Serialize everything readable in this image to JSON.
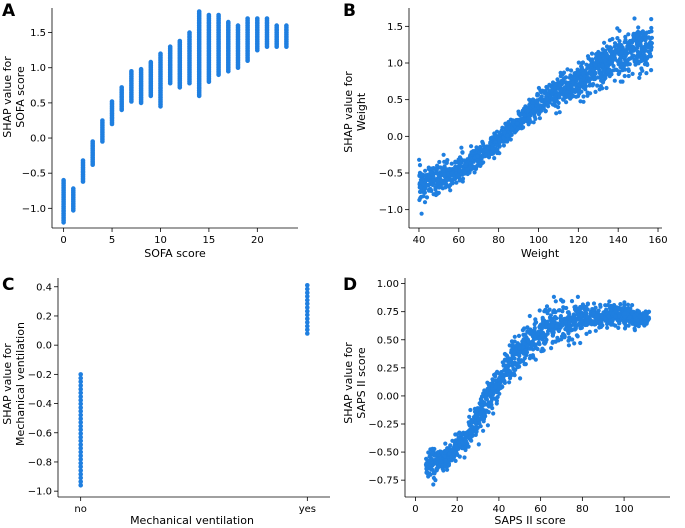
{
  "figure": {
    "point_color": "#1f7fe0"
  },
  "chart_data": [
    {
      "panel": "A",
      "type": "scatter",
      "xlabel": "SOFA score",
      "ylabel": [
        "SHAP value for",
        "SOFA score"
      ],
      "xlim": [
        -1.2,
        24.2
      ],
      "ylim": [
        -1.28,
        1.85
      ],
      "xticks": [
        0,
        5,
        10,
        15,
        20
      ],
      "xtick_labels": [
        "0",
        "5",
        "10",
        "15",
        "20"
      ],
      "yticks": [
        -1.0,
        -0.5,
        0.0,
        0.5,
        1.0,
        1.5
      ],
      "ytick_labels": [
        "−1.0",
        "−0.5",
        "0.0",
        "0.5",
        "1.0",
        "1.5"
      ],
      "discrete_bands": [
        {
          "x": 0,
          "ymin": -1.2,
          "ymax": -0.6
        },
        {
          "x": 1,
          "ymin": -1.03,
          "ymax": -0.72
        },
        {
          "x": 2,
          "ymin": -0.62,
          "ymax": -0.32
        },
        {
          "x": 3,
          "ymin": -0.38,
          "ymax": -0.05
        },
        {
          "x": 4,
          "ymin": -0.05,
          "ymax": 0.25
        },
        {
          "x": 5,
          "ymin": 0.2,
          "ymax": 0.52
        },
        {
          "x": 6,
          "ymin": 0.4,
          "ymax": 0.72
        },
        {
          "x": 7,
          "ymin": 0.52,
          "ymax": 0.95
        },
        {
          "x": 8,
          "ymin": 0.5,
          "ymax": 0.98
        },
        {
          "x": 9,
          "ymin": 0.6,
          "ymax": 1.08
        },
        {
          "x": 10,
          "ymin": 0.45,
          "ymax": 1.2
        },
        {
          "x": 11,
          "ymin": 0.78,
          "ymax": 1.3
        },
        {
          "x": 12,
          "ymin": 0.72,
          "ymax": 1.38
        },
        {
          "x": 13,
          "ymin": 0.78,
          "ymax": 1.5
        },
        {
          "x": 14,
          "ymin": 0.6,
          "ymax": 1.8
        },
        {
          "x": 15,
          "ymin": 0.8,
          "ymax": 1.75
        },
        {
          "x": 16,
          "ymin": 0.9,
          "ymax": 1.75
        },
        {
          "x": 17,
          "ymin": 0.95,
          "ymax": 1.65
        },
        {
          "x": 18,
          "ymin": 1.0,
          "ymax": 1.6
        },
        {
          "x": 19,
          "ymin": 1.1,
          "ymax": 1.7
        },
        {
          "x": 20,
          "ymin": 1.25,
          "ymax": 1.7
        },
        {
          "x": 21,
          "ymin": 1.3,
          "ymax": 1.7
        },
        {
          "x": 22,
          "ymin": 1.3,
          "ymax": 1.6
        },
        {
          "x": 23,
          "ymin": 1.3,
          "ymax": 1.6
        }
      ]
    },
    {
      "panel": "B",
      "type": "scatter",
      "xlabel": "Weight",
      "ylabel": [
        "SHAP value for",
        "Weight"
      ],
      "xlim": [
        35,
        162
      ],
      "ylim": [
        -1.25,
        1.75
      ],
      "xticks": [
        40,
        60,
        80,
        100,
        120,
        140,
        160
      ],
      "xtick_labels": [
        "40",
        "60",
        "80",
        "100",
        "120",
        "140",
        "160"
      ],
      "yticks": [
        -1.0,
        -0.5,
        0.0,
        0.5,
        1.0,
        1.5
      ],
      "ytick_labels": [
        "−1.0",
        "−0.5",
        "0.0",
        "0.5",
        "1.0",
        "1.5"
      ],
      "trend": [
        {
          "x": 40,
          "y": -0.65,
          "spread": 0.22
        },
        {
          "x": 55,
          "y": -0.55,
          "spread": 0.18
        },
        {
          "x": 70,
          "y": -0.3,
          "spread": 0.15
        },
        {
          "x": 85,
          "y": 0.05,
          "spread": 0.12
        },
        {
          "x": 100,
          "y": 0.45,
          "spread": 0.15
        },
        {
          "x": 120,
          "y": 0.75,
          "spread": 0.2
        },
        {
          "x": 140,
          "y": 1.1,
          "spread": 0.25
        },
        {
          "x": 157,
          "y": 1.25,
          "spread": 0.3
        }
      ]
    },
    {
      "panel": "C",
      "type": "scatter",
      "xlabel": "Mechanical ventilation",
      "ylabel": [
        "SHAP value for",
        "Mechanical ventilation"
      ],
      "xlim": [
        -0.1,
        1.1
      ],
      "ylim": [
        -1.04,
        0.46
      ],
      "xticks": [
        0,
        1
      ],
      "xtick_labels": [
        "no",
        "yes"
      ],
      "yticks": [
        -1.0,
        -0.8,
        -0.6,
        -0.4,
        -0.2,
        0.0,
        0.2,
        0.4
      ],
      "ytick_labels": [
        "−1.0",
        "−0.8",
        "−0.6",
        "−0.4",
        "−0.2",
        "0.0",
        "0.2",
        "0.4"
      ],
      "discrete_bands": [
        {
          "x": 0,
          "ymin": -0.96,
          "ymax": -0.2
        },
        {
          "x": 1,
          "ymin": 0.08,
          "ymax": 0.41
        }
      ]
    },
    {
      "panel": "D",
      "type": "scatter",
      "xlabel": "SAPS II score",
      "ylabel": [
        "SHAP value for",
        "SAPS II score"
      ],
      "xlim": [
        -5,
        122
      ],
      "ylim": [
        -0.9,
        1.05
      ],
      "xticks": [
        0,
        20,
        40,
        60,
        80,
        100
      ],
      "xtick_labels": [
        "0",
        "20",
        "40",
        "60",
        "80",
        "100"
      ],
      "yticks": [
        -0.75,
        -0.5,
        -0.25,
        0.0,
        0.25,
        0.5,
        0.75,
        1.0
      ],
      "ytick_labels": [
        "−0.75",
        "−0.50",
        "−0.25",
        "0.00",
        "0.25",
        "0.50",
        "0.75",
        "1.00"
      ],
      "trend": [
        {
          "x": 5,
          "y": -0.6,
          "spread": 0.12
        },
        {
          "x": 15,
          "y": -0.55,
          "spread": 0.1
        },
        {
          "x": 25,
          "y": -0.35,
          "spread": 0.12
        },
        {
          "x": 35,
          "y": -0.05,
          "spread": 0.14
        },
        {
          "x": 45,
          "y": 0.3,
          "spread": 0.15
        },
        {
          "x": 55,
          "y": 0.5,
          "spread": 0.15
        },
        {
          "x": 65,
          "y": 0.62,
          "spread": 0.15
        },
        {
          "x": 80,
          "y": 0.7,
          "spread": 0.12
        },
        {
          "x": 95,
          "y": 0.72,
          "spread": 0.1
        },
        {
          "x": 112,
          "y": 0.68,
          "spread": 0.06
        }
      ]
    }
  ]
}
